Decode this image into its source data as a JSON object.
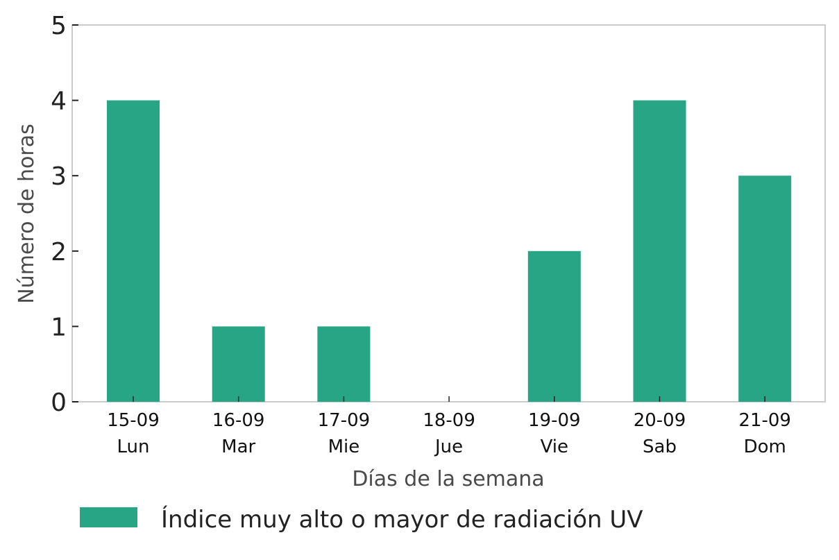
{
  "chart_data": {
    "type": "bar",
    "categories": [
      {
        "date": "15-09",
        "day": "Lun"
      },
      {
        "date": "16-09",
        "day": "Mar"
      },
      {
        "date": "17-09",
        "day": "Mie"
      },
      {
        "date": "18-09",
        "day": "Jue"
      },
      {
        "date": "19-09",
        "day": "Vie"
      },
      {
        "date": "20-09",
        "day": "Sab"
      },
      {
        "date": "21-09",
        "day": "Dom"
      }
    ],
    "series": [
      {
        "name": "Índice muy alto o mayor de radiación UV",
        "color": "#27a584",
        "values": [
          4,
          1,
          1,
          0,
          2,
          4,
          3
        ]
      }
    ],
    "xlabel": "Días de la semana",
    "ylabel": "Número de horas",
    "ylim": [
      0,
      5
    ],
    "yticks": [
      0,
      1,
      2,
      3,
      4,
      5
    ],
    "grid": false,
    "legend_position": "bottom"
  }
}
